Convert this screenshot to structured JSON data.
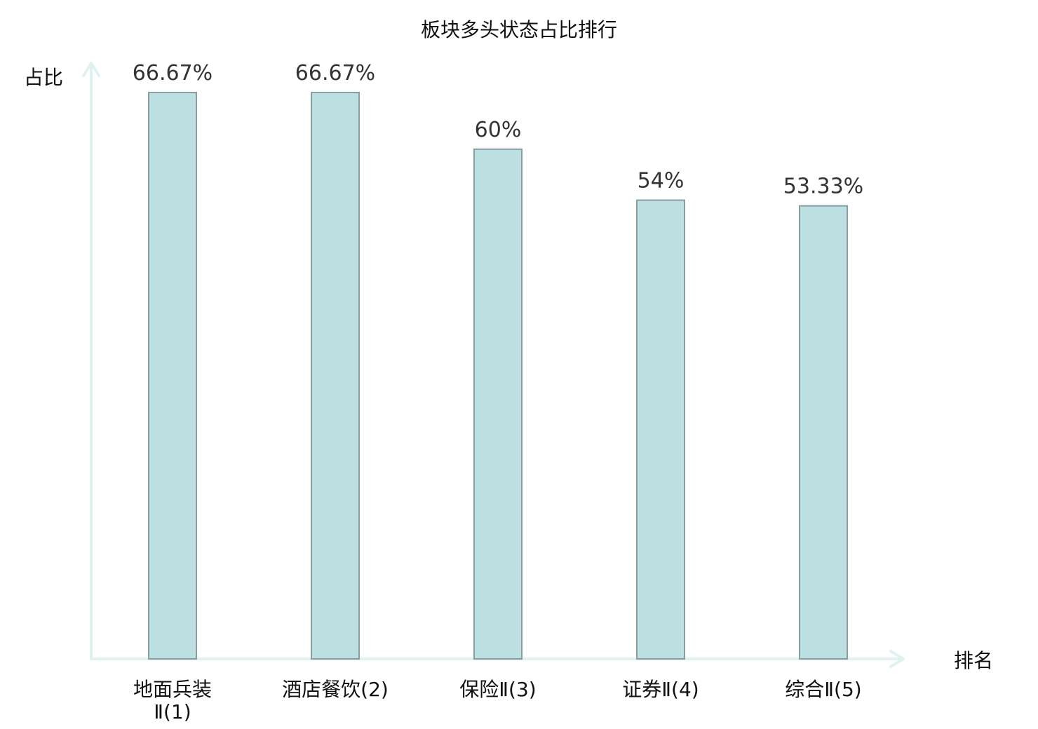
{
  "chart_data": {
    "type": "bar",
    "title": "板块多头状态占比排行",
    "ylabel": "占比",
    "xlabel": "排名",
    "categories": [
      "地面兵装Ⅱ(1)",
      "酒店餐饮(2)",
      "保险Ⅱ(3)",
      "证券Ⅱ(4)",
      "综合Ⅱ(5)"
    ],
    "category_lines": [
      [
        "地面兵装",
        "Ⅱ(1)"
      ],
      [
        "酒店餐饮(2)"
      ],
      [
        "保险Ⅱ(3)"
      ],
      [
        "证券Ⅱ(4)"
      ],
      [
        "综合Ⅱ(5)"
      ]
    ],
    "values": [
      66.67,
      66.67,
      60,
      54,
      53.33
    ],
    "value_labels": [
      "66.67%",
      "66.67%",
      "60%",
      "54%",
      "53.33%"
    ],
    "highlight_index": 3,
    "ylim": [
      0,
      70
    ],
    "grid": false,
    "colors": {
      "bar_fill": "#bce0e2",
      "bar_stroke": "#879fa2",
      "axis": "#e0f2ef",
      "highlight_text": "#e00000",
      "text": "#111111",
      "data_label": "#333333"
    }
  }
}
